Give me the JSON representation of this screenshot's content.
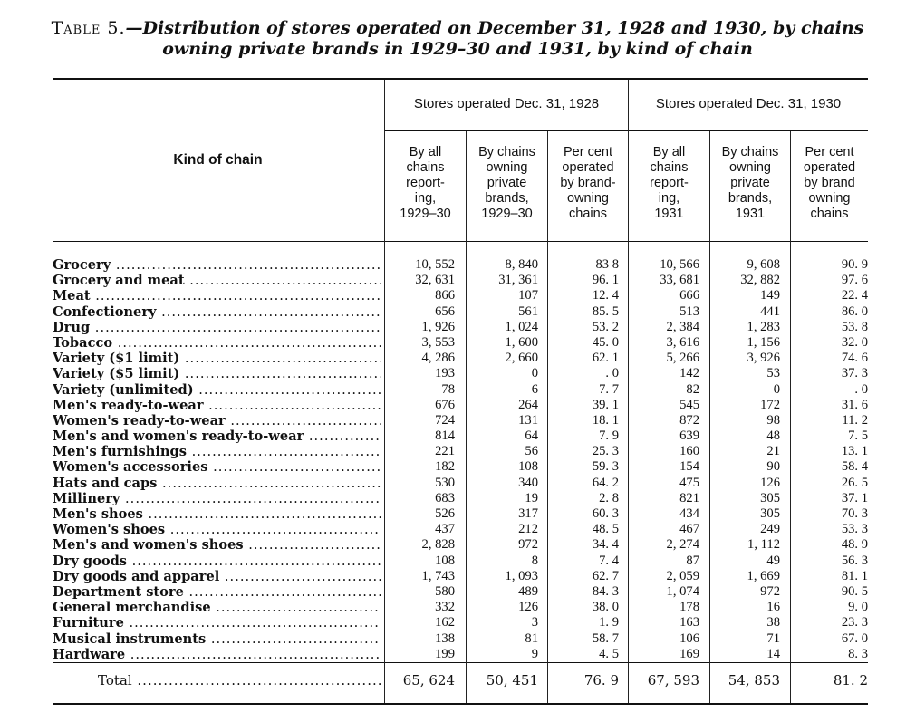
{
  "title": {
    "lead": "Table 5.",
    "line1": "—Distribution of stores operated on December 31, 1928 and 1930, by chains",
    "line2": "owning private brands in 1929–30 and 1931, by kind of chain"
  },
  "headers": {
    "kind": "Kind of chain",
    "group1": "Stores operated Dec. 31, 1928",
    "group2": "Stores operated Dec. 31, 1930",
    "cols": [
      [
        "By all",
        "chains",
        "report-",
        "ing,",
        "1929–30"
      ],
      [
        "By chains",
        "owning",
        "private",
        "brands,",
        "1929–30"
      ],
      [
        "Per cent",
        "operated",
        "by brand-",
        "owning",
        "chains"
      ],
      [
        "By all",
        "chains",
        "report-",
        "ing,",
        "1931"
      ],
      [
        "By chains",
        "owning",
        "private",
        "brands,",
        "1931"
      ],
      [
        "Per cent",
        "operated",
        "by brand",
        "owning",
        "chains"
      ]
    ]
  },
  "rows": [
    [
      "Grocery",
      "10, 552",
      "8, 840",
      "83 8",
      "10, 566",
      "9, 608",
      "90. 9"
    ],
    [
      "Grocery and meat",
      "32, 631",
      "31, 361",
      "96. 1",
      "33, 681",
      "32, 882",
      "97. 6"
    ],
    [
      "Meat",
      "866",
      "107",
      "12. 4",
      "666",
      "149",
      "22. 4"
    ],
    [
      "Confectionery",
      "656",
      "561",
      "85. 5",
      "513",
      "441",
      "86. 0"
    ],
    [
      "Drug",
      "1, 926",
      "1, 024",
      "53. 2",
      "2, 384",
      "1, 283",
      "53. 8"
    ],
    [
      "Tobacco",
      "3, 553",
      "1, 600",
      "45. 0",
      "3, 616",
      "1, 156",
      "32. 0"
    ],
    [
      "Variety ($1 limit)",
      "4, 286",
      "2, 660",
      "62. 1",
      "5, 266",
      "3, 926",
      "74. 6"
    ],
    [
      "Variety ($5 limit)",
      "193",
      "0",
      ". 0",
      "142",
      "53",
      "37. 3"
    ],
    [
      "Variety (unlimited)",
      "78",
      "6",
      "7. 7",
      "82",
      "0",
      ". 0"
    ],
    [
      "Men's ready-to-wear",
      "676",
      "264",
      "39. 1",
      "545",
      "172",
      "31. 6"
    ],
    [
      "Women's ready-to-wear",
      "724",
      "131",
      "18. 1",
      "872",
      "98",
      "11. 2"
    ],
    [
      "Men's and women's ready-to-wear",
      "814",
      "64",
      "7. 9",
      "639",
      "48",
      "7. 5"
    ],
    [
      "Men's furnishings",
      "221",
      "56",
      "25. 3",
      "160",
      "21",
      "13. 1"
    ],
    [
      "Women's accessories",
      "182",
      "108",
      "59. 3",
      "154",
      "90",
      "58. 4"
    ],
    [
      "Hats and caps",
      "530",
      "340",
      "64. 2",
      "475",
      "126",
      "26. 5"
    ],
    [
      "Millinery",
      "683",
      "19",
      "2. 8",
      "821",
      "305",
      "37. 1"
    ],
    [
      "Men's shoes",
      "526",
      "317",
      "60. 3",
      "434",
      "305",
      "70. 3"
    ],
    [
      "Women's shoes",
      "437",
      "212",
      "48. 5",
      "467",
      "249",
      "53. 3"
    ],
    [
      "Men's and women's shoes",
      "2, 828",
      "972",
      "34. 4",
      "2, 274",
      "1, 112",
      "48. 9"
    ],
    [
      "Dry goods",
      "108",
      "8",
      "7. 4",
      "87",
      "49",
      "56. 3"
    ],
    [
      "Dry goods and apparel",
      "1, 743",
      "1, 093",
      "62. 7",
      "2, 059",
      "1, 669",
      "81. 1"
    ],
    [
      "Department store",
      "580",
      "489",
      "84. 3",
      "1, 074",
      "972",
      "90. 5"
    ],
    [
      "General merchandise",
      "332",
      "126",
      "38. 0",
      "178",
      "16",
      "9. 0"
    ],
    [
      "Furniture",
      "162",
      "3",
      "1. 9",
      "163",
      "38",
      "23. 3"
    ],
    [
      "Musical instruments",
      "138",
      "81",
      "58. 7",
      "106",
      "71",
      "67. 0"
    ],
    [
      "Hardware",
      "199",
      "9",
      "4. 5",
      "169",
      "14",
      "8. 3"
    ]
  ],
  "total": [
    "Total",
    "65, 624",
    "50, 451",
    "76. 9",
    "67, 593",
    "54, 853",
    "81. 2"
  ]
}
